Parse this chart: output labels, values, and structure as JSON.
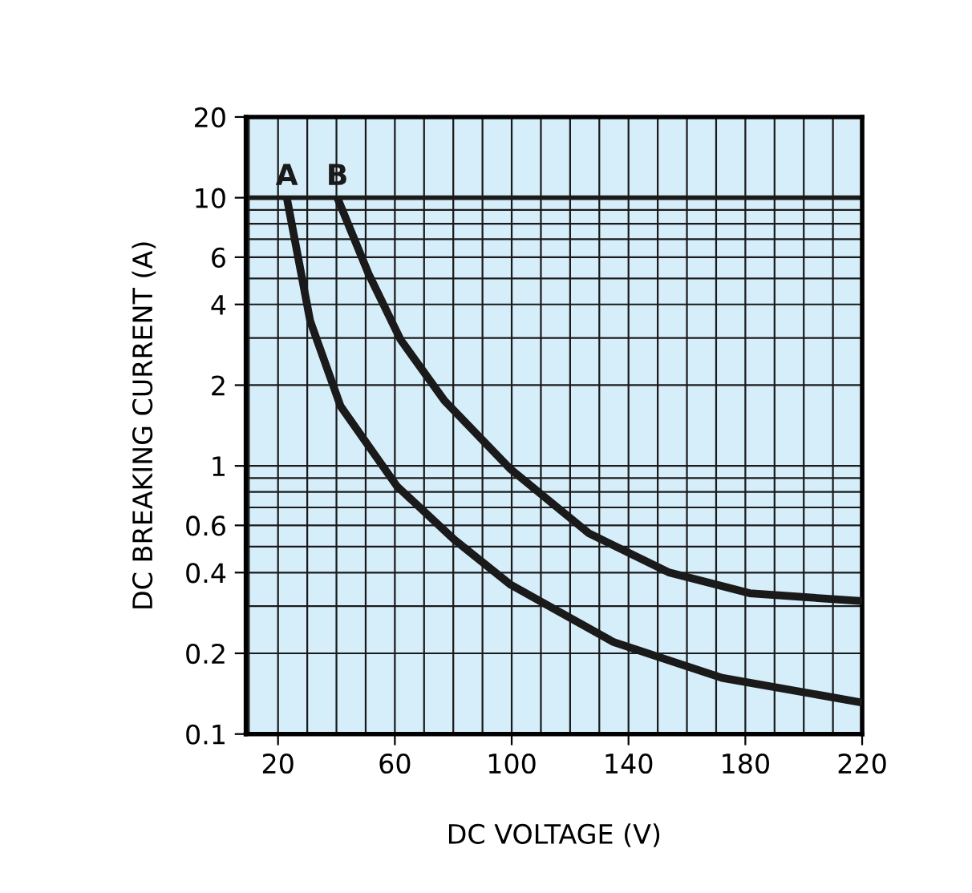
{
  "chart_data": {
    "type": "line",
    "xlabel": "DC VOLTAGE (V)",
    "ylabel": "DC BREAKING CURRENT (A)",
    "xlim": [
      9,
      220
    ],
    "xticks": [
      20,
      60,
      100,
      140,
      180,
      220
    ],
    "ylim": [
      0.1,
      20
    ],
    "yticks": [
      0.1,
      0.2,
      0.4,
      0.6,
      1,
      2,
      4,
      6,
      10,
      20
    ],
    "log": "y",
    "grid": true,
    "legend": false,
    "marker": "none",
    "line_style": "solid",
    "ref_lines": [
      {
        "axis": "y",
        "value": 10,
        "label": null,
        "color": "#1a1a1a"
      }
    ],
    "series": [
      {
        "name": "A",
        "color": "#1a1a1a",
        "x": [
          23,
          31,
          41.4,
          60.7,
          80.4,
          99.7,
          135,
          172,
          220
        ],
        "values": [
          10,
          3.47,
          1.67,
          0.84,
          0.53,
          0.36,
          0.22,
          0.162,
          0.131
        ]
      },
      {
        "name": "B",
        "color": "#1a1a1a",
        "x": [
          40.3,
          51,
          62,
          77,
          99.7,
          126.5,
          154,
          181.5,
          220
        ],
        "values": [
          10,
          5.2,
          2.95,
          1.75,
          0.97,
          0.56,
          0.4,
          0.335,
          0.313
        ]
      }
    ]
  }
}
